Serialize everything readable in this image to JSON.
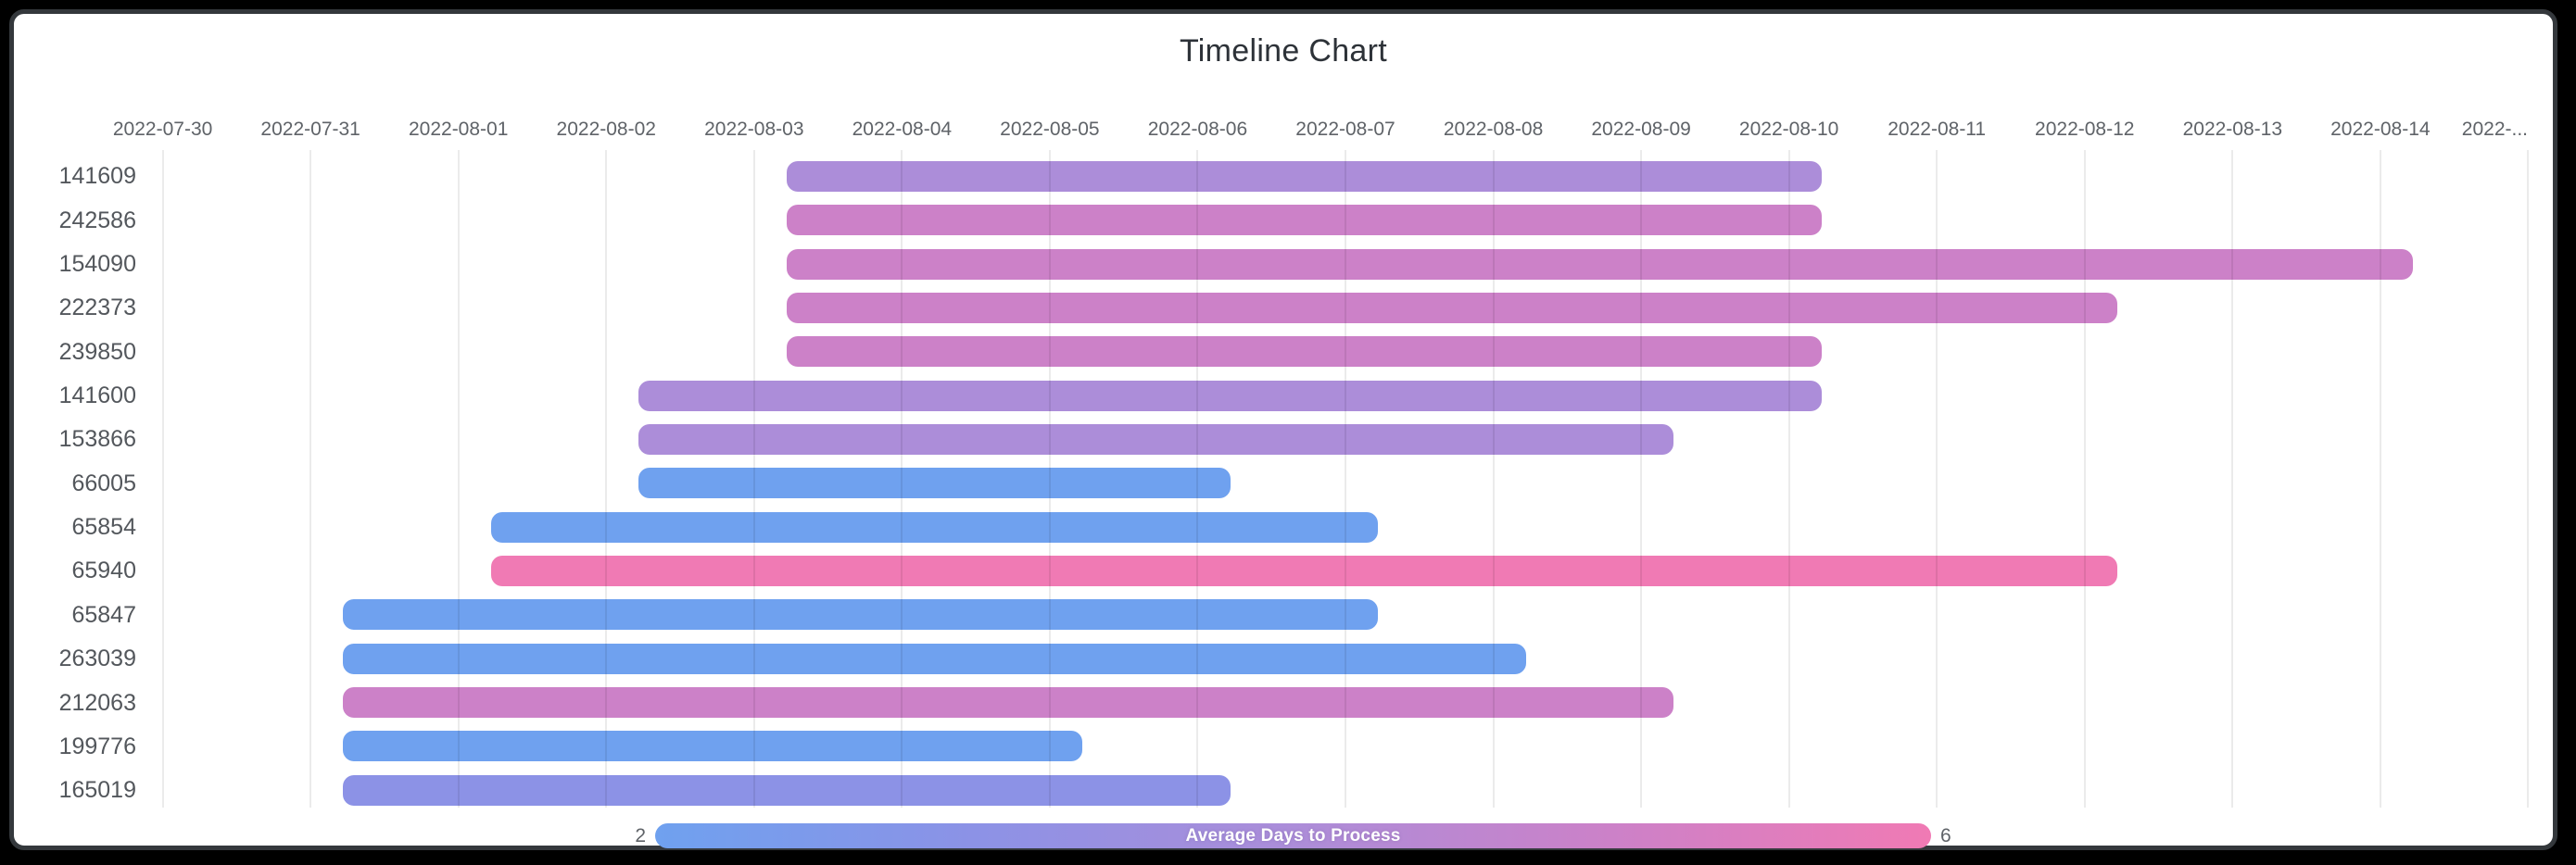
{
  "window": {
    "background": "#000000",
    "card_background": "#ffffff",
    "card_border_color": "#34383c"
  },
  "chart_data": {
    "type": "timeline",
    "subtype": "gantt",
    "title": "Timeline Chart",
    "x_axis": {
      "start_date": "2022-07-30",
      "days_per_tick": 1,
      "bar_time_offset_days": 0.22,
      "tick_labels": [
        "2022-07-30",
        "2022-07-31",
        "2022-08-01",
        "2022-08-02",
        "2022-08-03",
        "2022-08-04",
        "2022-08-05",
        "2022-08-06",
        "2022-08-07",
        "2022-08-08",
        "2022-08-09",
        "2022-08-10",
        "2022-08-11",
        "2022-08-12",
        "2022-08-13",
        "2022-08-14",
        "2022-..."
      ]
    },
    "grid": "vertical-on",
    "rows": [
      {
        "id": "141609",
        "start": "2022-08-03",
        "end": "2022-08-10",
        "avg_days_to_process": 4
      },
      {
        "id": "242586",
        "start": "2022-08-03",
        "end": "2022-08-10",
        "avg_days_to_process": 5
      },
      {
        "id": "154090",
        "start": "2022-08-03",
        "end": "2022-08-14",
        "avg_days_to_process": 5
      },
      {
        "id": "222373",
        "start": "2022-08-03",
        "end": "2022-08-12",
        "avg_days_to_process": 5
      },
      {
        "id": "239850",
        "start": "2022-08-03",
        "end": "2022-08-10",
        "avg_days_to_process": 5
      },
      {
        "id": "141600",
        "start": "2022-08-02",
        "end": "2022-08-10",
        "avg_days_to_process": 4
      },
      {
        "id": "153866",
        "start": "2022-08-02",
        "end": "2022-08-09",
        "avg_days_to_process": 4
      },
      {
        "id": "66005",
        "start": "2022-08-02",
        "end": "2022-08-06",
        "avg_days_to_process": 2
      },
      {
        "id": "65854",
        "start": "2022-08-01",
        "end": "2022-08-07",
        "avg_days_to_process": 2
      },
      {
        "id": "65940",
        "start": "2022-08-01",
        "end": "2022-08-12",
        "avg_days_to_process": 6
      },
      {
        "id": "65847",
        "start": "2022-07-31",
        "end": "2022-08-07",
        "avg_days_to_process": 2
      },
      {
        "id": "263039",
        "start": "2022-07-31",
        "end": "2022-08-08",
        "avg_days_to_process": 2
      },
      {
        "id": "212063",
        "start": "2022-07-31",
        "end": "2022-08-09",
        "avg_days_to_process": 5
      },
      {
        "id": "199776",
        "start": "2022-07-31",
        "end": "2022-08-05",
        "avg_days_to_process": 2
      },
      {
        "id": "165019",
        "start": "2022-07-31",
        "end": "2022-08-06",
        "avg_days_to_process": 3
      }
    ],
    "color_scale": {
      "2": "#6fa1ef",
      "3": "#8c92e6",
      "4": "#ac8dd9",
      "5": "#cc81c8",
      "6": "#f07ab4"
    },
    "legend": {
      "label": "Average Days to Process",
      "min": "2",
      "max": "6",
      "position": "bottom"
    }
  }
}
